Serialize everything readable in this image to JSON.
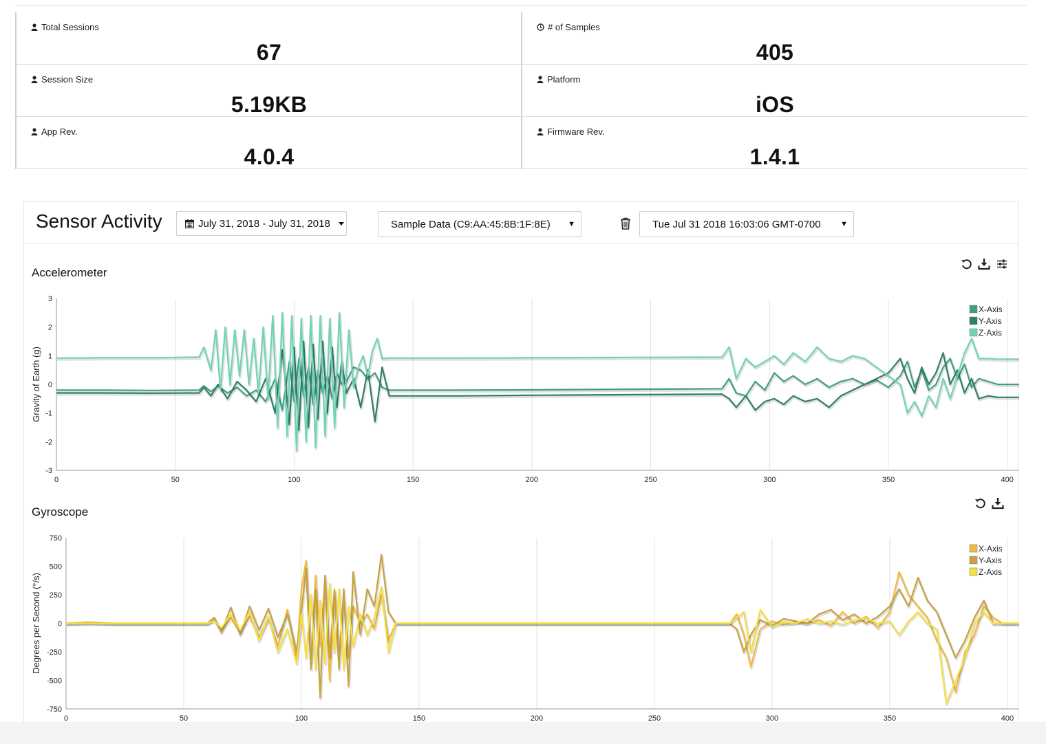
{
  "stats": {
    "total_sessions": {
      "label": "Total Sessions",
      "value": "67",
      "icon": "user-icon"
    },
    "samples": {
      "label": "# of Samples",
      "value": "405",
      "icon": "clock-icon"
    },
    "session_size": {
      "label": "Session Size",
      "value": "5.19KB",
      "icon": "user-icon"
    },
    "platform": {
      "label": "Platform",
      "value": "iOS",
      "icon": "user-icon"
    },
    "app_rev": {
      "label": "App Rev.",
      "value": "4.0.4",
      "icon": "user-icon"
    },
    "firmware_rev": {
      "label": "Firmware Rev.",
      "value": "1.4.1",
      "icon": "user-icon"
    }
  },
  "sensor": {
    "title": "Sensor Activity",
    "date_range": "July 31, 2018 - July 31, 2018",
    "sample_select": "Sample Data (C9:AA:45:8B:1F:8E)",
    "session_select": "Tue Jul 31 2018 16:03:06 GMT-0700"
  },
  "charts": {
    "accel": {
      "title": "Accelerometer"
    },
    "gyro": {
      "title": "Gyroscope"
    }
  },
  "chart_data": [
    {
      "type": "line",
      "title": "Accelerometer",
      "xlabel": "",
      "ylabel": "Gravity of Earth (g)",
      "xlim": [
        0,
        405
      ],
      "ylim": [
        -3,
        3
      ],
      "xticks": [
        0,
        50,
        100,
        150,
        200,
        250,
        300,
        350,
        400
      ],
      "yticks": [
        -3,
        -2,
        -1,
        0,
        1,
        2,
        3
      ],
      "grid": true,
      "legend": "top-right",
      "series": [
        {
          "name": "X-Axis",
          "color": "#3f9f85",
          "x": [
            0,
            20,
            40,
            60,
            62,
            65,
            68,
            72,
            76,
            80,
            84,
            88,
            92,
            95,
            98,
            100,
            102,
            104,
            106,
            108,
            110,
            112,
            114,
            116,
            118,
            120,
            122,
            125,
            128,
            131,
            134,
            137,
            140,
            170,
            200,
            240,
            280,
            283,
            286,
            290,
            294,
            298,
            302,
            306,
            310,
            315,
            320,
            325,
            330,
            335,
            340,
            345,
            350,
            355,
            358,
            361,
            364,
            367,
            370,
            373,
            376,
            379,
            382,
            385,
            388,
            392,
            396,
            400,
            405
          ],
          "values": [
            -0.2,
            -0.2,
            -0.21,
            -0.2,
            -0.05,
            -0.25,
            -0.05,
            -0.3,
            -0.1,
            -0.4,
            -0.2,
            -0.6,
            0.2,
            -0.9,
            0.8,
            -0.6,
            0.9,
            -0.4,
            0.6,
            -0.7,
            0.5,
            -0.3,
            0.3,
            -0.5,
            0.4,
            0.0,
            0.1,
            0.6,
            0.5,
            0.2,
            0.4,
            -0.1,
            -0.2,
            -0.2,
            -0.19,
            -0.17,
            -0.15,
            0.2,
            -0.3,
            -0.4,
            0.1,
            -0.2,
            0.4,
            0.1,
            0.3,
            0.0,
            0.2,
            -0.1,
            0.1,
            0.2,
            0.0,
            0.15,
            -0.1,
            0.3,
            0.8,
            -0.1,
            0.5,
            -0.2,
            0.0,
            0.6,
            0.9,
            0.2,
            0.7,
            -0.1,
            0.2,
            0.1,
            0.0,
            0.0,
            0.0
          ]
        },
        {
          "name": "Y-Axis",
          "color": "#2f7f69",
          "x": [
            0,
            20,
            40,
            60,
            62,
            65,
            68,
            72,
            76,
            80,
            84,
            88,
            92,
            95,
            98,
            100,
            102,
            104,
            106,
            108,
            110,
            112,
            114,
            116,
            118,
            120,
            122,
            125,
            128,
            131,
            134,
            137,
            140,
            170,
            200,
            240,
            280,
            283,
            286,
            290,
            294,
            298,
            302,
            306,
            310,
            315,
            320,
            325,
            330,
            335,
            340,
            345,
            350,
            355,
            358,
            361,
            364,
            367,
            370,
            373,
            376,
            379,
            382,
            385,
            388,
            392,
            396,
            400,
            405
          ],
          "values": [
            -0.3,
            -0.3,
            -0.31,
            -0.3,
            -0.1,
            -0.4,
            0.0,
            -0.5,
            0.1,
            -0.2,
            -0.6,
            0.2,
            -1.0,
            1.2,
            -1.4,
            1.3,
            -1.6,
            1.5,
            -1.5,
            1.4,
            -1.2,
            1.5,
            -1.0,
            1.3,
            -0.8,
            0.8,
            -0.3,
            0.2,
            -0.8,
            0.5,
            -1.3,
            0.6,
            -0.4,
            -0.4,
            -0.38,
            -0.36,
            -0.34,
            -0.5,
            -0.8,
            -0.4,
            -0.9,
            -0.6,
            -0.5,
            -0.7,
            -0.4,
            -0.6,
            -0.5,
            -0.8,
            -0.4,
            -0.2,
            0.0,
            0.2,
            0.4,
            0.9,
            0.2,
            -0.3,
            0.6,
            0.0,
            0.4,
            1.1,
            0.0,
            0.5,
            -0.3,
            0.2,
            -0.5,
            -0.4,
            -0.45,
            -0.45,
            -0.45
          ]
        },
        {
          "name": "Z-Axis",
          "color": "#6fd4b5",
          "x": [
            0,
            20,
            40,
            60,
            62,
            65,
            67,
            69,
            71,
            73,
            75,
            77,
            79,
            81,
            83,
            85,
            87,
            89,
            91,
            93,
            95,
            97,
            99,
            101,
            103,
            105,
            107,
            109,
            111,
            113,
            115,
            117,
            119,
            121,
            123,
            125,
            127,
            129,
            131,
            133,
            135,
            137,
            140,
            170,
            200,
            240,
            280,
            283,
            286,
            290,
            294,
            298,
            302,
            306,
            310,
            315,
            320,
            325,
            330,
            335,
            340,
            345,
            350,
            355,
            358,
            361,
            364,
            367,
            370,
            373,
            376,
            379,
            382,
            385,
            388,
            392,
            396,
            400,
            405
          ],
          "values": [
            0.92,
            0.93,
            0.93,
            0.95,
            1.3,
            0.5,
            1.9,
            -0.2,
            2.0,
            0.0,
            1.9,
            0.3,
            1.9,
            0.0,
            1.6,
            -0.3,
            2.0,
            -0.5,
            2.4,
            -1.5,
            2.5,
            -1.8,
            2.4,
            -2.3,
            2.3,
            -2.0,
            2.4,
            -2.2,
            2.4,
            -1.8,
            2.3,
            -1.5,
            2.5,
            -0.8,
            1.9,
            -0.1,
            0.6,
            1.0,
            0.3,
            1.2,
            1.6,
            0.9,
            0.92,
            0.92,
            0.93,
            0.94,
            0.95,
            1.3,
            0.2,
            0.9,
            0.6,
            0.8,
            1.0,
            0.7,
            1.1,
            0.8,
            1.3,
            0.9,
            0.8,
            1.0,
            0.9,
            0.6,
            0.3,
            0.0,
            -1.0,
            -0.6,
            -1.1,
            -0.4,
            -0.8,
            0.2,
            -0.5,
            0.3,
            1.1,
            1.6,
            0.9,
            0.9,
            0.88,
            0.88,
            0.88
          ]
        }
      ]
    },
    {
      "type": "line",
      "title": "Gyroscope",
      "xlabel": "",
      "ylabel": "Degrees per Second (°/s)",
      "xlim": [
        0,
        405
      ],
      "ylim": [
        -750,
        750
      ],
      "xticks": [
        0,
        50,
        100,
        150,
        200,
        250,
        300,
        350,
        400
      ],
      "yticks": [
        -750,
        -500,
        -250,
        0,
        250,
        500,
        750
      ],
      "grid": true,
      "legend": "top-right",
      "series": [
        {
          "name": "X-Axis",
          "color": "#f2b93b",
          "x": [
            0,
            10,
            20,
            40,
            60,
            63,
            66,
            70,
            74,
            78,
            82,
            86,
            90,
            94,
            98,
            100,
            102,
            104,
            106,
            108,
            110,
            112,
            114,
            116,
            118,
            120,
            122,
            125,
            128,
            131,
            134,
            137,
            140,
            170,
            200,
            240,
            282,
            285,
            288,
            291,
            295,
            300,
            305,
            310,
            315,
            320,
            325,
            330,
            335,
            340,
            345,
            350,
            354,
            358,
            362,
            366,
            370,
            374,
            378,
            382,
            386,
            390,
            394,
            398,
            405
          ],
          "values": [
            0,
            10,
            0,
            0,
            0,
            40,
            -60,
            50,
            -80,
            60,
            -120,
            40,
            -200,
            120,
            -300,
            300,
            550,
            -350,
            420,
            -200,
            380,
            -500,
            300,
            -250,
            200,
            -300,
            150,
            0,
            80,
            -50,
            250,
            -150,
            0,
            0,
            0,
            0,
            0,
            80,
            -100,
            -380,
            -50,
            20,
            -10,
            10,
            0,
            30,
            -20,
            100,
            0,
            60,
            -40,
            100,
            450,
            250,
            150,
            50,
            -150,
            -300,
            -600,
            -250,
            -100,
            150,
            50,
            0,
            0
          ]
        },
        {
          "name": "Y-Axis",
          "color": "#c9a140",
          "x": [
            0,
            10,
            20,
            40,
            60,
            63,
            66,
            70,
            74,
            78,
            82,
            86,
            90,
            94,
            98,
            100,
            102,
            104,
            106,
            108,
            110,
            112,
            114,
            116,
            118,
            120,
            122,
            125,
            128,
            131,
            134,
            137,
            140,
            170,
            200,
            240,
            282,
            285,
            288,
            291,
            295,
            300,
            305,
            310,
            315,
            320,
            325,
            330,
            335,
            340,
            345,
            350,
            354,
            358,
            362,
            366,
            370,
            374,
            378,
            382,
            386,
            390,
            394,
            398,
            405
          ],
          "values": [
            0,
            5,
            0,
            0,
            0,
            50,
            -80,
            140,
            -100,
            150,
            -60,
            130,
            -120,
            80,
            -250,
            100,
            480,
            -400,
            300,
            -650,
            420,
            -300,
            280,
            -400,
            300,
            -550,
            450,
            -100,
            300,
            150,
            600,
            100,
            0,
            0,
            0,
            0,
            0,
            -50,
            -250,
            -100,
            30,
            -20,
            40,
            20,
            0,
            80,
            120,
            30,
            80,
            0,
            60,
            150,
            300,
            150,
            400,
            200,
            100,
            -100,
            -300,
            -150,
            50,
            200,
            0,
            0,
            0
          ]
        },
        {
          "name": "Z-Axis",
          "color": "#f7e13d",
          "x": [
            0,
            10,
            20,
            40,
            60,
            63,
            66,
            70,
            74,
            78,
            82,
            86,
            90,
            94,
            98,
            100,
            102,
            104,
            106,
            108,
            110,
            112,
            114,
            116,
            118,
            120,
            122,
            125,
            128,
            131,
            134,
            137,
            140,
            170,
            200,
            240,
            282,
            285,
            288,
            291,
            295,
            300,
            305,
            310,
            315,
            320,
            325,
            330,
            335,
            340,
            345,
            350,
            354,
            358,
            362,
            366,
            370,
            374,
            378,
            382,
            386,
            390,
            394,
            398,
            405
          ],
          "values": [
            0,
            0,
            0,
            0,
            0,
            20,
            -40,
            80,
            -60,
            100,
            -150,
            60,
            -250,
            -50,
            -350,
            80,
            -300,
            250,
            -400,
            200,
            -350,
            350,
            -250,
            300,
            -400,
            150,
            -200,
            80,
            -100,
            50,
            320,
            -250,
            0,
            0,
            0,
            0,
            0,
            50,
            100,
            -250,
            120,
            -30,
            10,
            0,
            40,
            0,
            20,
            -10,
            30,
            40,
            0,
            20,
            -100,
            20,
            100,
            0,
            -50,
            -700,
            -500,
            -300,
            0,
            100,
            0,
            0,
            0
          ]
        }
      ]
    }
  ]
}
